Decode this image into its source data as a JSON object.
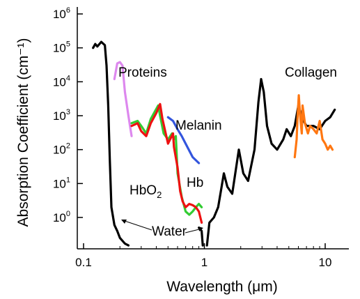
{
  "chart_data": {
    "type": "line",
    "title": "",
    "xlabel": "Wavelength (μm)",
    "ylabel": "Absorption Coefficient (cm⁻¹)",
    "x_scale": "log",
    "y_scale": "log",
    "xlim": [
      0.1,
      20
    ],
    "ylim": [
      0.15,
      1000000
    ],
    "x_ticks": [
      {
        "value": 0.1,
        "label": "0.1"
      },
      {
        "value": 1,
        "label": "1"
      },
      {
        "value": 10,
        "label": "10"
      }
    ],
    "y_ticks": [
      {
        "value": 1,
        "base": "10",
        "exp": "0"
      },
      {
        "value": 10,
        "base": "10",
        "exp": "1"
      },
      {
        "value": 100,
        "base": "10",
        "exp": "2"
      },
      {
        "value": 1000,
        "base": "10",
        "exp": "3"
      },
      {
        "value": 10000,
        "base": "10",
        "exp": "4"
      },
      {
        "value": 100000,
        "base": "10",
        "exp": "5"
      },
      {
        "value": 1000000,
        "base": "10",
        "exp": "6"
      }
    ],
    "grid": false,
    "legend": "none",
    "series": [
      {
        "name": "Water",
        "color": "#000000",
        "points": [
          [
            0.12,
            100000
          ],
          [
            0.125,
            130000
          ],
          [
            0.13,
            110000
          ],
          [
            0.14,
            150000
          ],
          [
            0.15,
            120000
          ],
          [
            0.155,
            30000
          ],
          [
            0.16,
            2000
          ],
          [
            0.165,
            50
          ],
          [
            0.17,
            2
          ],
          [
            0.18,
            0.6
          ],
          [
            0.19,
            0.4
          ],
          [
            0.2,
            0.25
          ],
          [
            0.22,
            0.17
          ],
          [
            0.235,
            0.15
          ]
        ]
      },
      {
        "name": "Water",
        "color": "#000000",
        "points": [
          [
            0.9,
            0.5
          ],
          [
            0.95,
            0.4
          ],
          [
            0.97,
            0.15
          ]
        ]
      },
      {
        "name": "Water",
        "color": "#000000",
        "points": [
          [
            1.05,
            0.15
          ],
          [
            1.1,
            0.7
          ],
          [
            1.2,
            1.0
          ],
          [
            1.3,
            2.0
          ],
          [
            1.45,
            20
          ],
          [
            1.55,
            8
          ],
          [
            1.7,
            5
          ],
          [
            1.93,
            100
          ],
          [
            2.1,
            20
          ],
          [
            2.3,
            12
          ],
          [
            2.6,
            100
          ],
          [
            2.8,
            2500
          ],
          [
            2.95,
            12000
          ],
          [
            3.1,
            5000
          ],
          [
            3.3,
            500
          ],
          [
            3.6,
            150
          ],
          [
            4.0,
            100
          ],
          [
            4.5,
            200
          ],
          [
            4.8,
            400
          ],
          [
            5.2,
            250
          ],
          [
            5.6,
            500
          ],
          [
            6.0,
            2000
          ],
          [
            6.5,
            800
          ],
          [
            7,
            500
          ],
          [
            8,
            500
          ],
          [
            9,
            400
          ],
          [
            10,
            700
          ],
          [
            11,
            900
          ],
          [
            12,
            1500
          ]
        ]
      },
      {
        "name": "Proteins",
        "color": "#dd88ee",
        "points": [
          [
            0.18,
            12000
          ],
          [
            0.19,
            35000
          ],
          [
            0.2,
            38000
          ],
          [
            0.21,
            30000
          ],
          [
            0.215,
            12000
          ],
          [
            0.22,
            5000
          ],
          [
            0.235,
            1000
          ],
          [
            0.25,
            250
          ]
        ]
      },
      {
        "name": "Melanin",
        "color": "#3355dd",
        "points": [
          [
            0.5,
            900
          ],
          [
            0.55,
            700
          ],
          [
            0.6,
            400
          ],
          [
            0.65,
            250
          ],
          [
            0.7,
            150
          ],
          [
            0.8,
            60
          ],
          [
            0.9,
            40
          ]
        ]
      },
      {
        "name": "HbO2",
        "color": "#33cc33",
        "points": [
          [
            0.25,
            600
          ],
          [
            0.28,
            700
          ],
          [
            0.3,
            500
          ],
          [
            0.33,
            300
          ],
          [
            0.36,
            800
          ],
          [
            0.4,
            1600
          ],
          [
            0.415,
            2000
          ],
          [
            0.43,
            1000
          ],
          [
            0.46,
            300
          ],
          [
            0.5,
            200
          ],
          [
            0.54,
            300
          ],
          [
            0.56,
            200
          ],
          [
            0.58,
            250
          ],
          [
            0.6,
            20
          ],
          [
            0.65,
            4
          ],
          [
            0.7,
            1.5
          ],
          [
            0.75,
            1.2
          ],
          [
            0.8,
            1.5
          ],
          [
            0.85,
            2.0
          ],
          [
            0.9,
            2.5
          ],
          [
            0.95,
            2.0
          ]
        ]
      },
      {
        "name": "Hb",
        "color": "#ee1111",
        "points": [
          [
            0.25,
            500
          ],
          [
            0.28,
            600
          ],
          [
            0.3,
            350
          ],
          [
            0.33,
            250
          ],
          [
            0.36,
            600
          ],
          [
            0.4,
            1200
          ],
          [
            0.43,
            2200
          ],
          [
            0.45,
            800
          ],
          [
            0.5,
            150
          ],
          [
            0.55,
            300
          ],
          [
            0.56,
            120
          ],
          [
            0.6,
            30
          ],
          [
            0.63,
            6
          ],
          [
            0.66,
            3
          ],
          [
            0.7,
            2
          ],
          [
            0.75,
            2.5
          ],
          [
            0.8,
            2.3
          ],
          [
            0.85,
            2.0
          ],
          [
            0.9,
            1.5
          ],
          [
            0.95,
            0.7
          ]
        ]
      },
      {
        "name": "Collagen",
        "color": "#ff7711",
        "points": [
          [
            5.6,
            60
          ],
          [
            5.8,
            200
          ],
          [
            5.9,
            800
          ],
          [
            6.05,
            4000
          ],
          [
            6.2,
            1000
          ],
          [
            6.4,
            300
          ],
          [
            6.5,
            2000
          ],
          [
            6.8,
            600
          ],
          [
            7.2,
            300
          ],
          [
            7.5,
            500
          ],
          [
            8,
            400
          ],
          [
            8.5,
            300
          ],
          [
            9,
            700
          ],
          [
            9.5,
            200
          ],
          [
            10,
            150
          ],
          [
            10.5,
            100
          ],
          [
            11,
            130
          ],
          [
            11.5,
            100
          ]
        ]
      }
    ],
    "annotations": {
      "water": "Water",
      "proteins": "Proteins",
      "melanin": "Melanin",
      "hbo2_base": "HbO",
      "hbo2_sub": "2",
      "hb": "Hb",
      "collagen": "Collagen"
    }
  }
}
